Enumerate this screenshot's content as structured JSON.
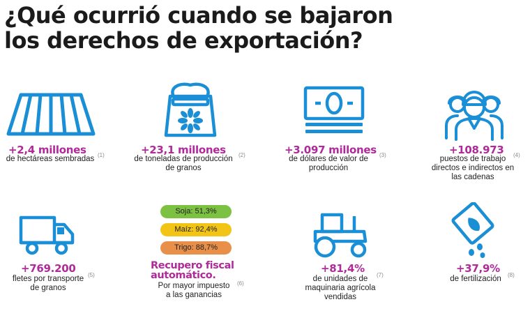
{
  "title": {
    "line1": "¿Qué ocurrió cuando se bajaron",
    "line2": "los derechos de exportación?"
  },
  "colors": {
    "accent_magenta": "#b02a9a",
    "icon_blue": "#1a8fd6",
    "soja_green": "#7cc142",
    "maiz_yellow": "#f2c418",
    "trigo_orange": "#e8904a"
  },
  "stats": [
    {
      "icon": "field-rows-icon",
      "value": "+2,4 millones",
      "desc": "de hectáreas sembradas",
      "note": "(1)"
    },
    {
      "icon": "grain-sack-icon",
      "value": "+23,1 millones",
      "desc_line1": "de toneladas de producción",
      "desc_line2": "de granos",
      "note": "(2)"
    },
    {
      "icon": "banknote-icon",
      "value": "+3.097 millones",
      "desc_line1": "de dólares de valor de",
      "desc_line2": "producción",
      "note": "(3)"
    },
    {
      "icon": "workers-icon",
      "value": "+108.973",
      "desc_line1": "puestos de trabajo",
      "desc_line2": "directos e indirectos en",
      "desc_line3": "las cadenas",
      "note": "(4)"
    },
    {
      "icon": "truck-icon",
      "value": "+769.200",
      "desc_line1": "fletes por transporte",
      "desc_line2": "de granos",
      "note": "(5)"
    },
    {
      "value_line1": "Recupero fiscal",
      "value_line2": "automático.",
      "desc_line1": "Por mayor impuesto",
      "desc_line2": "a las ganancias",
      "note": "(6)"
    },
    {
      "icon": "tractor-icon",
      "value": "+81,4%",
      "desc_line1": "de unidades de",
      "desc_line2": "maquinaria agrícola",
      "desc_line3": "vendidas",
      "note": "(7)"
    },
    {
      "icon": "fertilizer-bag-icon",
      "value": "+37,9%",
      "desc": "de fertilización",
      "note": "(8)"
    }
  ],
  "crops": [
    {
      "label": "Soja: 51,3%"
    },
    {
      "label": "Maíz: 92,4%"
    },
    {
      "label": "Trigo: 88,7%"
    }
  ]
}
